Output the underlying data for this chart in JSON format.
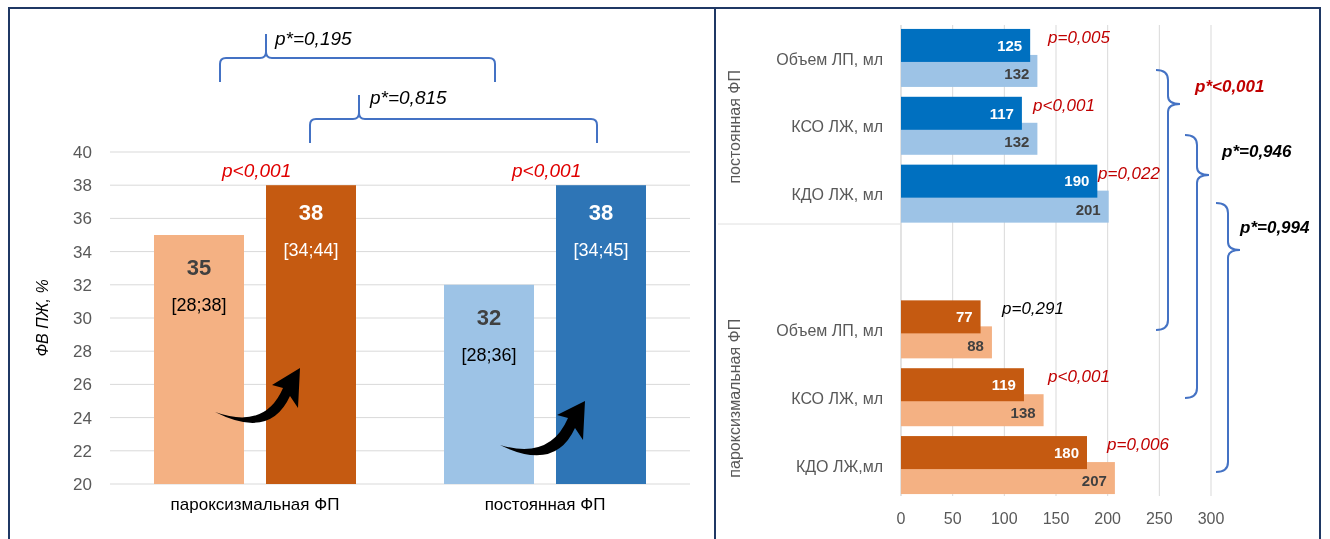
{
  "chart_data": [
    {
      "type": "bar",
      "ylabel": "ФВ ПЖ, %",
      "categories": [
        "пароксизмальная ФП",
        "постоянная ФП"
      ],
      "series": [
        {
          "colors": [
            "#f4b183",
            "#9dc3e6"
          ],
          "values": [
            35,
            32
          ],
          "value_labels": [
            "35\n[28;38]",
            "32\n[28;36]"
          ]
        },
        {
          "colors": [
            "#c55a11",
            "#2e75b6"
          ],
          "values": [
            38,
            38
          ],
          "value_labels": [
            "38\n[34;44]",
            "38\n[34;45]"
          ]
        }
      ],
      "ylim": [
        20,
        40
      ],
      "yticks": [
        20,
        22,
        24,
        26,
        28,
        30,
        32,
        34,
        36,
        38,
        40
      ],
      "grid": "y",
      "annotations": [
        "p*=0,195",
        "p*=0,815",
        "p<0,001",
        "p<0,001"
      ]
    },
    {
      "type": "bar",
      "orientation": "horizontal",
      "categories": [
        "Объем ЛП, мл",
        "КСО ЛЖ, мл",
        "КДО ЛЖ, мл",
        null,
        "Объем ЛП, мл",
        "КСО ЛЖ, мл",
        "КДО ЛЖ,мл"
      ],
      "series": [
        {
          "colors": [
            "#9dc3e6",
            "#9dc3e6",
            "#9dc3e6",
            null,
            "#f4b183",
            "#f4b183",
            "#f4b183"
          ],
          "values": [
            132,
            132,
            201,
            null,
            88,
            138,
            207
          ]
        },
        {
          "colors": [
            "#0070c0",
            "#0070c0",
            "#0070c0",
            null,
            "#c55a11",
            "#c55a11",
            "#c55a11"
          ],
          "values": [
            125,
            117,
            190,
            null,
            77,
            119,
            180
          ]
        }
      ],
      "xlim": [
        0,
        300
      ],
      "xticks": [
        0,
        50,
        100,
        150,
        200,
        250,
        300
      ],
      "grid": "x",
      "data_labels": true,
      "annotations": [
        "постоянная ФП",
        "пароксизмальная ФП",
        "p=0,005",
        "p<0,001",
        "p=0,022",
        "p=0,291",
        "p<0,001",
        "p=0,006",
        "p*<0,001",
        "p*=0,946",
        "p*=0,994"
      ]
    }
  ]
}
